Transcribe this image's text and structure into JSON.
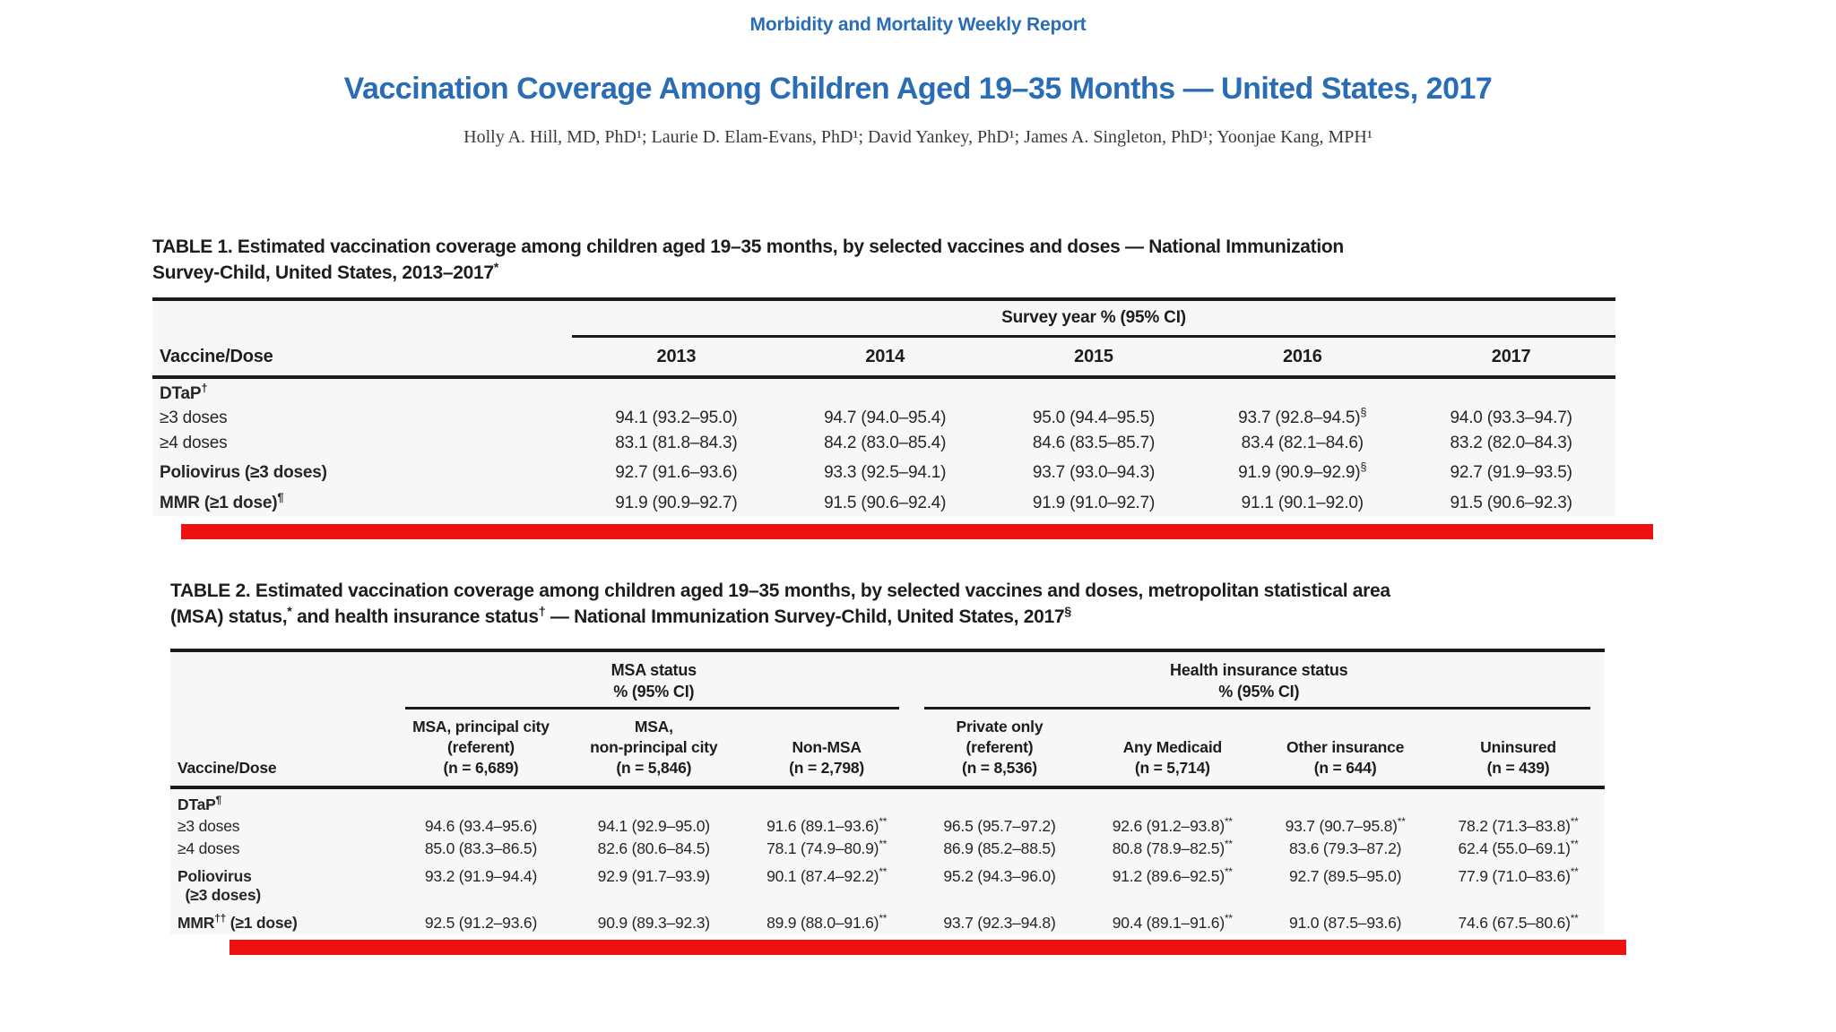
{
  "colors": {
    "accent_blue": "#2a6db4",
    "highlight_red": "#ee1111",
    "rule_black": "#1b1b1b"
  },
  "masthead": {
    "journal": "Morbidity and Mortality Weekly Report"
  },
  "article": {
    "title": "Vaccination Coverage Among Children Aged 19–35 Months — United States, 2017",
    "authors": "Holly A. Hill, MD, PhD¹; Laurie D. Elam-Evans, PhD¹; David Yankey, PhD¹; James A. Singleton, PhD¹; Yoonjae Kang, MPH¹"
  },
  "table1": {
    "title": "TABLE 1. Estimated vaccination coverage among children aged 19–35 months, by selected vaccines and doses — National Immunization\nSurvey-Child, United States, 2013–2017*",
    "span_header": "Survey year % (95% CI)",
    "col_header": "Vaccine/Dose",
    "years": [
      "2013",
      "2014",
      "2015",
      "2016",
      "2017"
    ],
    "rows": [
      {
        "type": "group",
        "label": "DTaP†",
        "values": []
      },
      {
        "type": "sub",
        "label": "≥3 doses",
        "values": [
          "94.1 (93.2–95.0)",
          "94.7 (94.0–95.4)",
          "95.0 (94.4–95.5)",
          "93.7 (92.8–94.5)§",
          "94.0 (93.3–94.7)"
        ]
      },
      {
        "type": "sub",
        "label": "≥4 doses",
        "values": [
          "83.1 (81.8–84.3)",
          "84.2 (83.0–85.4)",
          "84.6 (83.5–85.7)",
          "83.4 (82.1–84.6)",
          "83.2 (82.0–84.3)"
        ]
      },
      {
        "type": "group-row",
        "label": "Poliovirus (≥3 doses)",
        "values": [
          "92.7 (91.6–93.6)",
          "93.3 (92.5–94.1)",
          "93.7 (93.0–94.3)",
          "91.9 (90.9–92.9)§",
          "92.7 (91.9–93.5)"
        ]
      },
      {
        "type": "group-row",
        "label": "MMR (≥1 dose)¶",
        "values": [
          "91.9 (90.9–92.7)",
          "91.5 (90.6–92.4)",
          "91.9 (91.0–92.7)",
          "91.1 (90.1–92.0)",
          "91.5 (90.6–92.3)"
        ]
      }
    ],
    "highlight": "red underline bar beneath MMR row"
  },
  "table2": {
    "title": "TABLE 2. Estimated vaccination coverage among children aged 19–35 months, by selected vaccines and doses, metropolitan statistical area\n(MSA) status,* and health insurance status† — National Immunization Survey-Child, United States, 2017§",
    "col_header": "Vaccine/Dose",
    "groups": [
      {
        "label": "MSA status\n% (95% CI)",
        "span": 3
      },
      {
        "label": "Health insurance status\n% (95% CI)",
        "span": 4
      }
    ],
    "columns": [
      "MSA, principal city\n(referent)\n(n = 6,689)",
      "MSA,\nnon-principal city\n(n = 5,846)",
      "Non-MSA\n(n = 2,798)",
      "Private only\n(referent)\n(n = 8,536)",
      "Any Medicaid\n(n = 5,714)",
      "Other insurance\n(n = 644)",
      "Uninsured\n(n = 439)"
    ],
    "rows": [
      {
        "type": "group",
        "label": "DTaP¶",
        "values": []
      },
      {
        "type": "sub",
        "label": "≥3 doses",
        "values": [
          "94.6 (93.4–95.6)",
          "94.1 (92.9–95.0)",
          "91.6 (89.1–93.6)**",
          "96.5 (95.7–97.2)",
          "92.6 (91.2–93.8)**",
          "93.7 (90.7–95.8)**",
          "78.2 (71.3–83.8)**"
        ]
      },
      {
        "type": "sub",
        "label": "≥4 doses",
        "values": [
          "85.0 (83.3–86.5)",
          "82.6 (80.6–84.5)",
          "78.1 (74.9–80.9)**",
          "86.9 (85.2–88.5)",
          "80.8 (78.9–82.5)**",
          "83.6 (79.3–87.2)",
          "62.4 (55.0–69.1)**"
        ]
      },
      {
        "type": "group-row",
        "label": "Poliovirus\n (≥3 doses)",
        "values": [
          "93.2 (91.9–94.4)",
          "92.9 (91.7–93.9)",
          "90.1 (87.4–92.2)**",
          "95.2 (94.3–96.0)",
          "91.2 (89.6–92.5)**",
          "92.7 (89.5–95.0)",
          "77.9 (71.0–83.6)**"
        ]
      },
      {
        "type": "group-row",
        "label": "MMR†† (≥1 dose)",
        "values": [
          "92.5 (91.2–93.6)",
          "90.9 (89.3–92.3)",
          "89.9 (88.0–91.6)**",
          "93.7 (92.3–94.8)",
          "90.4 (89.1–91.6)**",
          "91.0 (87.5–93.6)",
          "74.6 (67.5–80.6)**"
        ]
      }
    ],
    "highlight": "red underline bar beneath MMR row"
  }
}
